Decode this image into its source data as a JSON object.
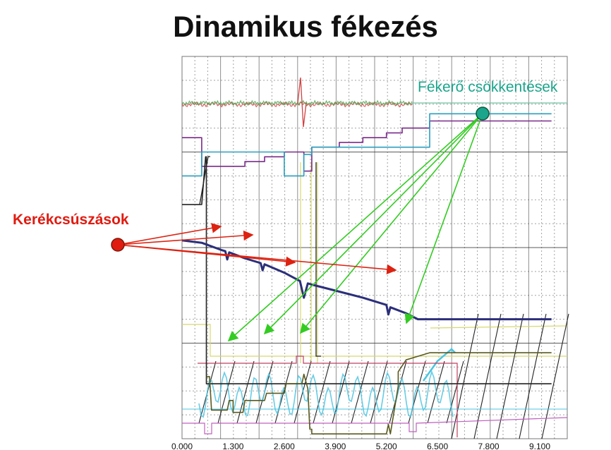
{
  "title": "Dinamikus fékezés",
  "annotations": {
    "right_label": "Fékerő csökkentések",
    "left_label": "Kerékcsúszások"
  },
  "colors": {
    "annotation_right": "#1aa58c",
    "annotation_left": "#e01b10",
    "arrow_green": "#33cc22",
    "arrow_red": "#dd2211"
  },
  "chart_data": {
    "type": "line",
    "title": "Dinamikus fékezés",
    "xlabel": "",
    "ylabel": "",
    "xlim": [
      0,
      9.8
    ],
    "grid": true,
    "x_tick_labels": [
      "0.000",
      "1.300",
      "2.600",
      "3.900",
      "5.200",
      "6.500",
      "7.800",
      "9.100"
    ],
    "x_ticks": [
      0,
      1.3,
      2.6,
      3.9,
      5.2,
      6.5,
      7.8,
      9.1
    ],
    "annotation_points": {
      "brake_force_reductions_x": [
        1.3,
        2.1,
        3.1,
        5.2
      ],
      "wheel_slips_x": [
        1.1,
        2.0,
        3.1,
        5.2
      ]
    },
    "series": [
      {
        "color": "#7a2a8a",
        "x": [
          0,
          0.5,
          0.5,
          1.6,
          1.6,
          2.1,
          2.1,
          2.6,
          2.6,
          3.1,
          3.1,
          3.3,
          3.3,
          4.0,
          4.0,
          4.6,
          4.6,
          5.2,
          5.2,
          5.6,
          5.6,
          6.3,
          6.3,
          9.4
        ],
        "y": [
          12.6,
          12.6,
          11.4,
          11.4,
          11.6,
          11.6,
          11.8,
          11.8,
          12,
          12,
          11.2,
          11.2,
          12.2,
          12.2,
          12.4,
          12.4,
          12.6,
          12.6,
          12.8,
          12.8,
          13,
          13,
          13.3,
          13.3
        ]
      },
      {
        "color": "#2a9fbf",
        "x": [
          0,
          0.5,
          0.5,
          2.6,
          2.6,
          3.1,
          3.1,
          3.3,
          3.3,
          6.3,
          6.3,
          9.4
        ],
        "y": [
          11,
          11,
          12,
          12,
          11,
          11,
          11.9,
          11.9,
          12.2,
          12.2,
          13.6,
          13.6
        ]
      },
      {
        "color": "#222222",
        "x": [
          0,
          0.5,
          0.6,
          0.62,
          0.62,
          9.4
        ],
        "y": [
          9.8,
          9.8,
          11.8,
          11.8,
          2.3,
          2.3
        ]
      },
      {
        "color": "#2b2f7a",
        "x": [
          0,
          0.5,
          1.0,
          1.1,
          1.15,
          1.2,
          1.6,
          2.0,
          2.05,
          2.1,
          2.6,
          3.0,
          3.1,
          3.2,
          3.3,
          3.9,
          4.6,
          5.2,
          5.25,
          5.3,
          5.7,
          6.0,
          9.4
        ],
        "y": [
          8.3,
          8.2,
          7.9,
          7.85,
          7.5,
          7.8,
          7.55,
          7.35,
          7.05,
          7.3,
          6.95,
          6.6,
          5.9,
          6.5,
          6.45,
          6.2,
          5.9,
          5.6,
          5.2,
          5.5,
          5.25,
          5.0,
          5.0
        ]
      },
      {
        "color": "#5a5a20",
        "x": [
          0.62,
          0.7,
          0.75,
          1.15,
          1.2,
          1.3,
          1.3,
          1.55,
          1.6,
          1.65,
          2.1,
          2.15,
          2.2,
          2.6,
          2.65,
          3.05,
          3.1,
          3.2,
          3.25,
          3.3,
          3.3,
          3.9,
          4.6,
          5.2,
          5.25,
          5.3,
          5.5,
          5.5,
          5.7,
          6.3,
          9.4
        ],
        "y": [
          2.6,
          2.6,
          1.2,
          1.2,
          1.6,
          1.6,
          1.1,
          1.1,
          1.6,
          1.6,
          1.6,
          1.9,
          1.9,
          1.9,
          2.3,
          2.3,
          2.7,
          2.1,
          0.4,
          0.4,
          0.2,
          0.2,
          0.2,
          0.2,
          0.6,
          0.2,
          2.2,
          2.8,
          3.3,
          3.6,
          3.6
        ]
      }
    ]
  }
}
